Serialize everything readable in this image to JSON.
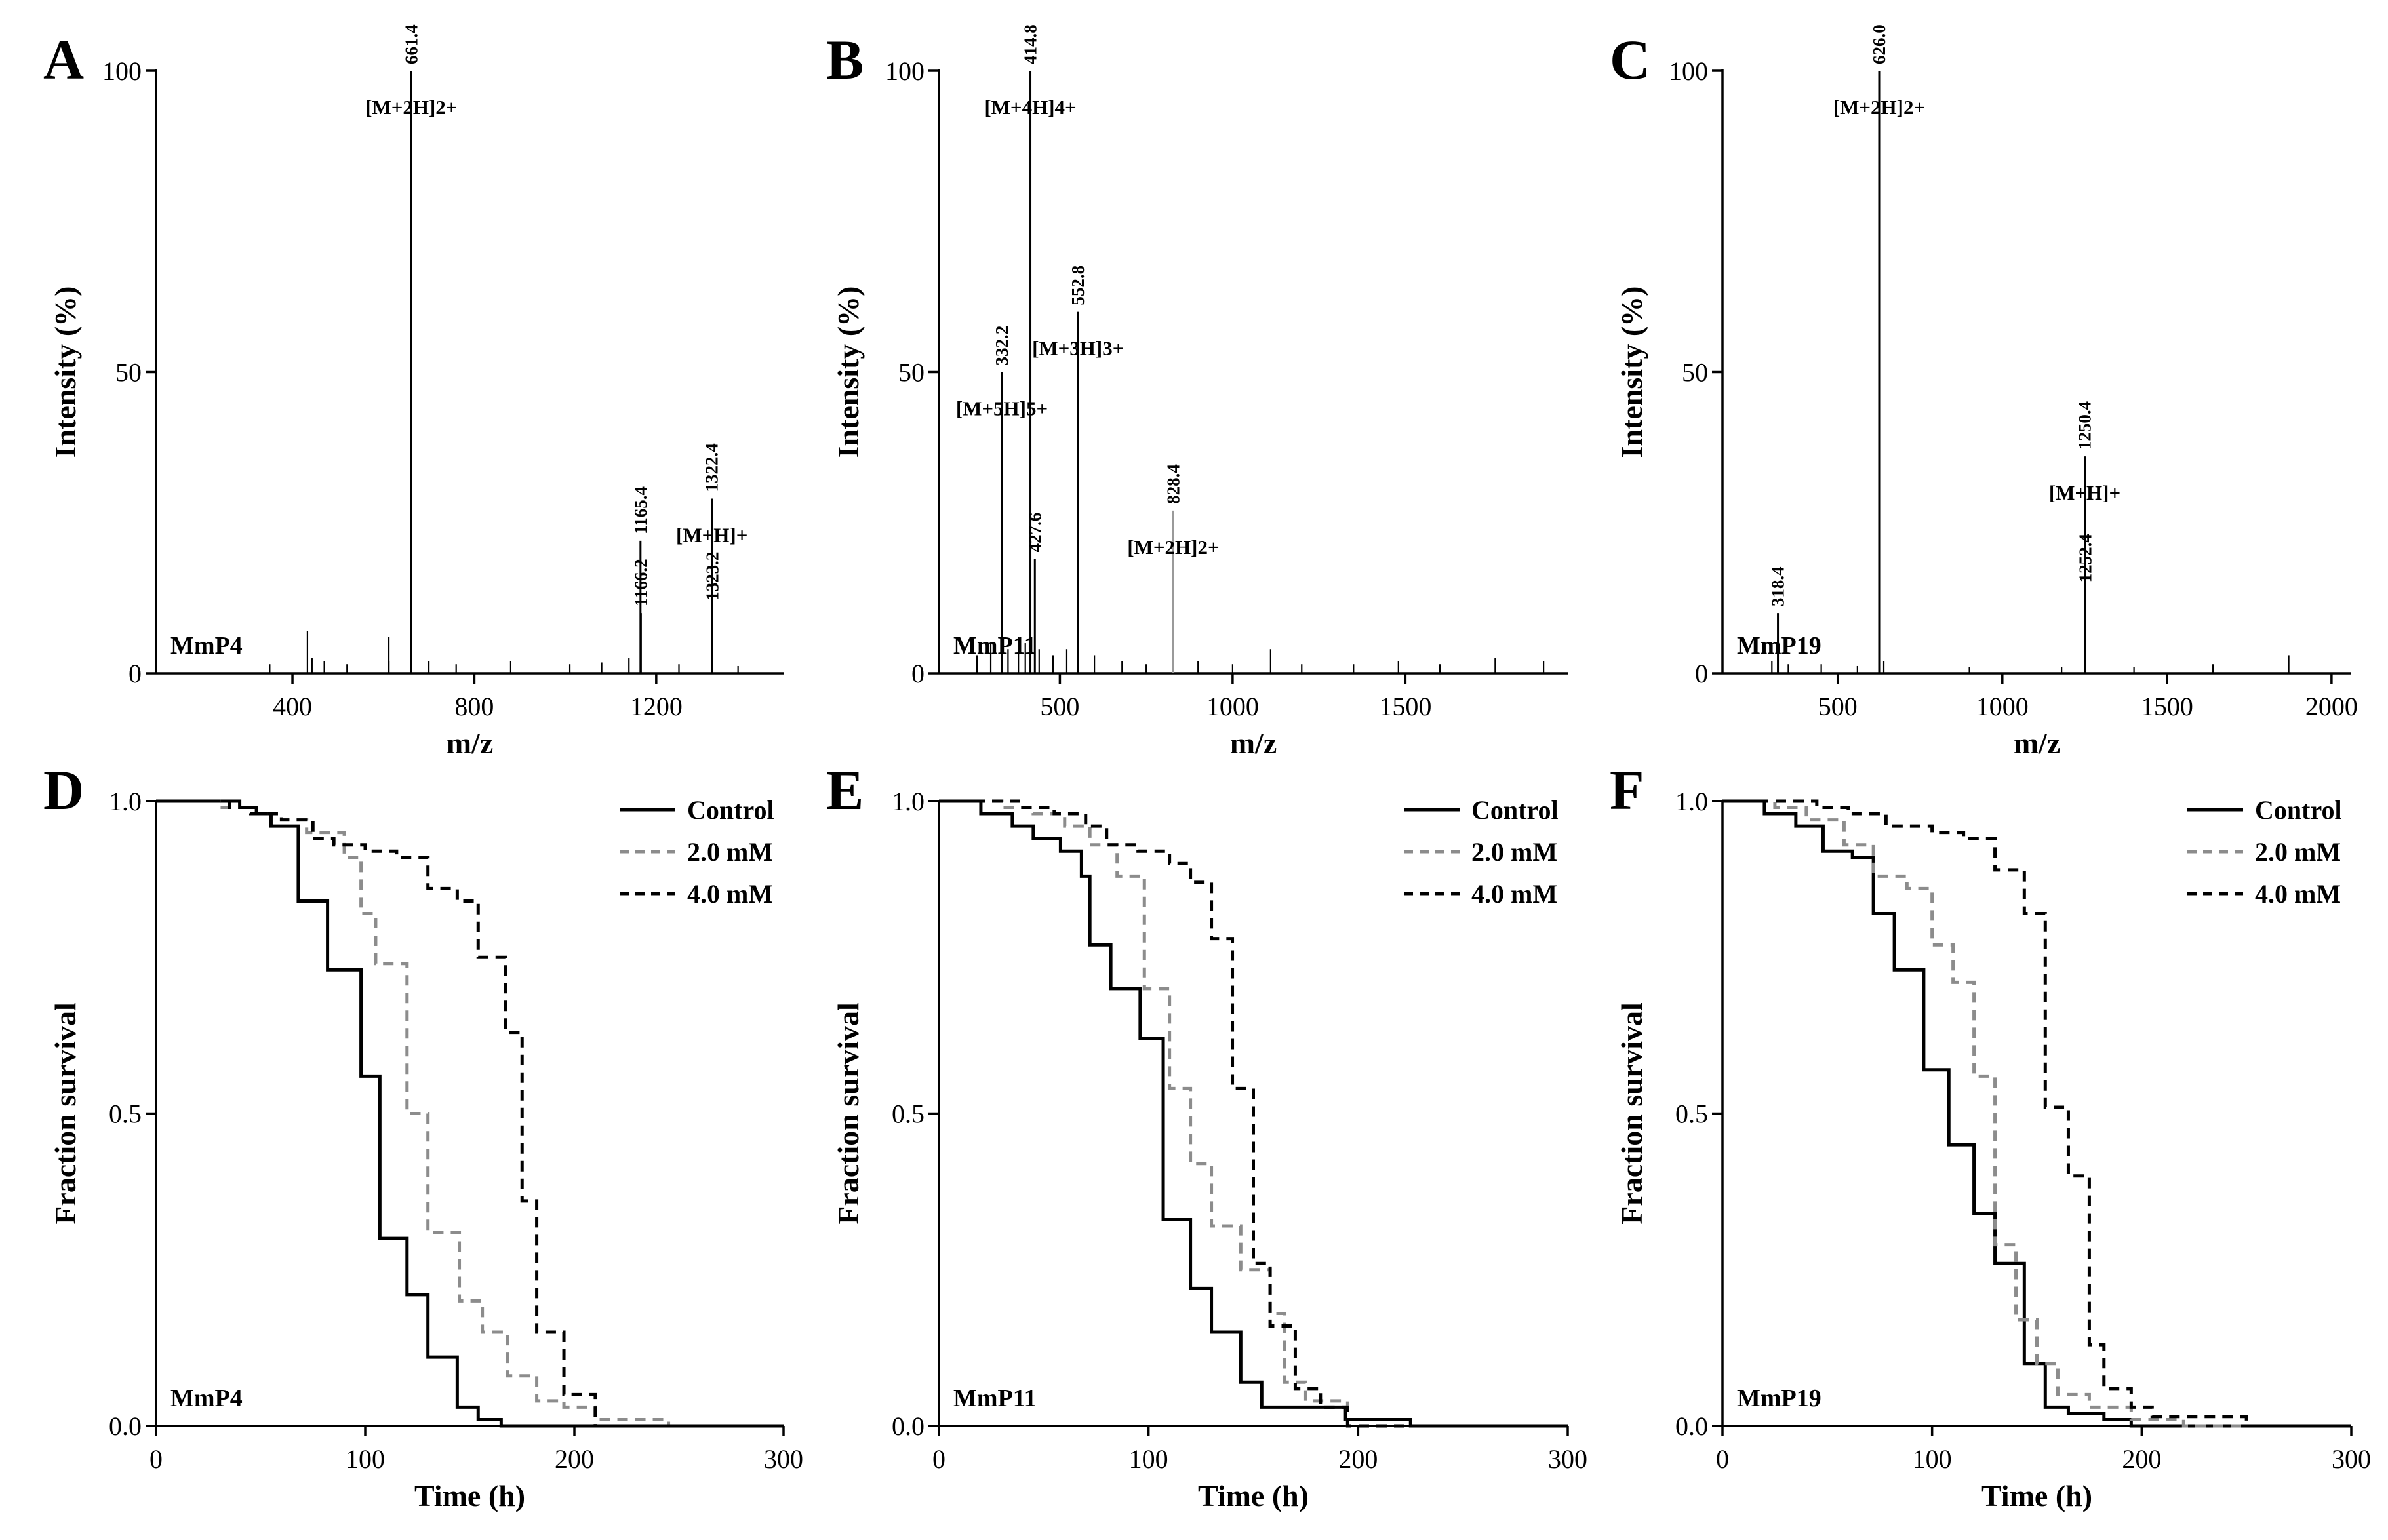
{
  "figure": {
    "colors": {
      "control": "#000000",
      "mid": "#8c8c8c",
      "high": "#000000",
      "axis": "#000000"
    },
    "panels_ms": [
      {
        "letter": "A",
        "sample_label": "MmP4",
        "chart_data": {
          "type": "bar",
          "title": "",
          "xlabel": "m/z",
          "ylabel": "Intensity (%)",
          "xlim": [
            100,
            1480
          ],
          "ylim": [
            0,
            100
          ],
          "xticks": [
            400,
            800,
            1200
          ],
          "yticks": [
            0,
            50,
            100
          ],
          "peaks": [
            {
              "x": 661.4,
              "y": 100,
              "label": "661.4",
              "ion": "[M+2H]2+",
              "grey": false
            },
            {
              "x": 1165.4,
              "y": 22,
              "label": "1165.4",
              "ion": "",
              "grey": false
            },
            {
              "x": 1166.2,
              "y": 10,
              "label": "1166.2",
              "ion": "",
              "grey": false
            },
            {
              "x": 1322.4,
              "y": 29,
              "label": "1322.4",
              "ion": "[M+H]+",
              "grey": false
            },
            {
              "x": 1323.2,
              "y": 11,
              "label": "1323.2",
              "ion": "",
              "grey": false
            }
          ],
          "noise": [
            {
              "x": 433,
              "y": 7
            },
            {
              "x": 443,
              "y": 2.5
            },
            {
              "x": 612,
              "y": 6
            },
            {
              "x": 612,
              "y": 2
            },
            {
              "x": 350,
              "y": 1.5
            },
            {
              "x": 470,
              "y": 2
            },
            {
              "x": 520,
              "y": 1.5
            },
            {
              "x": 700,
              "y": 2
            },
            {
              "x": 760,
              "y": 1.5
            },
            {
              "x": 880,
              "y": 2
            },
            {
              "x": 1010,
              "y": 1.5
            },
            {
              "x": 1080,
              "y": 1.8
            },
            {
              "x": 1140,
              "y": 2.5
            },
            {
              "x": 1250,
              "y": 1.5
            },
            {
              "x": 1380,
              "y": 1.2
            }
          ]
        }
      },
      {
        "letter": "B",
        "sample_label": "MmP11",
        "chart_data": {
          "type": "bar",
          "title": "",
          "xlabel": "m/z",
          "ylabel": "Intensity (%)",
          "xlim": [
            150,
            1970
          ],
          "ylim": [
            0,
            100
          ],
          "xticks": [
            500,
            1000,
            1500
          ],
          "yticks": [
            0,
            50,
            100
          ],
          "peaks": [
            {
              "x": 414.8,
              "y": 100,
              "label": "414.8",
              "ion": "[M+4H]4+",
              "grey": false
            },
            {
              "x": 332.2,
              "y": 50,
              "label": "332.2",
              "ion": "[M+5H]5+",
              "grey": false
            },
            {
              "x": 552.8,
              "y": 60,
              "label": "552.8",
              "ion": "[M+3H]3+",
              "grey": false
            },
            {
              "x": 427.6,
              "y": 19,
              "label": "427.6",
              "ion": "",
              "grey": false
            },
            {
              "x": 828.4,
              "y": 27,
              "label": "828.4",
              "ion": "[M+2H]2+",
              "grey": true
            }
          ],
          "noise": [
            {
              "x": 260,
              "y": 3
            },
            {
              "x": 300,
              "y": 5
            },
            {
              "x": 350,
              "y": 4
            },
            {
              "x": 380,
              "y": 6
            },
            {
              "x": 400,
              "y": 5
            },
            {
              "x": 440,
              "y": 4
            },
            {
              "x": 480,
              "y": 3
            },
            {
              "x": 520,
              "y": 4
            },
            {
              "x": 600,
              "y": 3
            },
            {
              "x": 680,
              "y": 2
            },
            {
              "x": 750,
              "y": 1.5
            },
            {
              "x": 900,
              "y": 2
            },
            {
              "x": 1000,
              "y": 1.5
            },
            {
              "x": 1110,
              "y": 4
            },
            {
              "x": 1200,
              "y": 1.5
            },
            {
              "x": 1350,
              "y": 1.5
            },
            {
              "x": 1480,
              "y": 2
            },
            {
              "x": 1600,
              "y": 1.5
            },
            {
              "x": 1760,
              "y": 2.5
            },
            {
              "x": 1900,
              "y": 2
            }
          ]
        }
      },
      {
        "letter": "C",
        "sample_label": "MmP19",
        "chart_data": {
          "type": "bar",
          "title": "",
          "xlabel": "m/z",
          "ylabel": "Intensity (%)",
          "xlim": [
            150,
            2060
          ],
          "ylim": [
            0,
            100
          ],
          "xticks": [
            500,
            1000,
            1500,
            2000
          ],
          "yticks": [
            0,
            50,
            100
          ],
          "peaks": [
            {
              "x": 626.0,
              "y": 100,
              "label": "626.0",
              "ion": "[M+2H]2+",
              "grey": false
            },
            {
              "x": 1250.4,
              "y": 36,
              "label": "1250.4",
              "ion": "[M+H]+",
              "grey": false
            },
            {
              "x": 1252.4,
              "y": 14,
              "label": "1252.4",
              "ion": "",
              "grey": false
            },
            {
              "x": 318.4,
              "y": 10,
              "label": "318.4",
              "ion": "",
              "grey": false
            }
          ],
          "noise": [
            {
              "x": 300,
              "y": 2
            },
            {
              "x": 350,
              "y": 1.5
            },
            {
              "x": 450,
              "y": 1.5
            },
            {
              "x": 560,
              "y": 1.2
            },
            {
              "x": 640,
              "y": 2
            },
            {
              "x": 900,
              "y": 1
            },
            {
              "x": 1180,
              "y": 1
            },
            {
              "x": 1400,
              "y": 1
            },
            {
              "x": 1640,
              "y": 1.5
            },
            {
              "x": 1870,
              "y": 3
            }
          ]
        }
      }
    ],
    "panels_surv": [
      {
        "letter": "D",
        "sample_label": "MmP4",
        "chart_data": {
          "type": "line",
          "title": "",
          "xlabel": "Time (h)",
          "ylabel": "Fraction survival",
          "xlim": [
            0,
            300
          ],
          "ylim": [
            0,
            1.0
          ],
          "xticks": [
            0,
            100,
            200,
            300
          ],
          "yticks": [
            0.0,
            0.5,
            1.0
          ],
          "legend": [
            "Control",
            "2.0 mM",
            "4.0 mM"
          ],
          "series": [
            {
              "name": "Control",
              "style": "control",
              "x": [
                0,
                40,
                48,
                55,
                68,
                82,
                98,
                107,
                120,
                130,
                144,
                154,
                165
              ],
              "y": [
                1.0,
                0.99,
                0.98,
                0.96,
                0.84,
                0.73,
                0.56,
                0.3,
                0.21,
                0.11,
                0.03,
                0.01,
                0.0
              ]
            },
            {
              "name": "2.0 mM",
              "style": "mid",
              "x": [
                0,
                30,
                45,
                60,
                72,
                90,
                98,
                105,
                120,
                130,
                145,
                156,
                168,
                182,
                195,
                210,
                245
              ],
              "y": [
                1.0,
                0.99,
                0.98,
                0.97,
                0.95,
                0.91,
                0.82,
                0.74,
                0.5,
                0.31,
                0.2,
                0.15,
                0.08,
                0.04,
                0.03,
                0.01,
                0.0
              ]
            },
            {
              "name": "4.0 mM",
              "style": "high",
              "x": [
                0,
                35,
                45,
                60,
                75,
                85,
                100,
                115,
                130,
                144,
                154,
                167,
                175,
                182,
                195,
                210
              ],
              "y": [
                1.0,
                0.99,
                0.98,
                0.97,
                0.94,
                0.93,
                0.92,
                0.91,
                0.86,
                0.84,
                0.75,
                0.63,
                0.36,
                0.15,
                0.05,
                0.0
              ]
            }
          ]
        }
      },
      {
        "letter": "E",
        "sample_label": "MmP11",
        "chart_data": {
          "type": "line",
          "title": "",
          "xlabel": "Time (h)",
          "ylabel": "Fraction survival",
          "xlim": [
            0,
            300
          ],
          "ylim": [
            0,
            1.0
          ],
          "xticks": [
            0,
            100,
            200,
            300
          ],
          "yticks": [
            0.0,
            0.5,
            1.0
          ],
          "legend": [
            "Control",
            "2.0 mM",
            "4.0 mM"
          ],
          "series": [
            {
              "name": "Control",
              "style": "control",
              "x": [
                0,
                20,
                35,
                45,
                58,
                68,
                72,
                82,
                96,
                107,
                120,
                130,
                144,
                154,
                194,
                225
              ],
              "y": [
                1.0,
                0.98,
                0.96,
                0.94,
                0.92,
                0.88,
                0.77,
                0.7,
                0.62,
                0.33,
                0.22,
                0.15,
                0.07,
                0.03,
                0.01,
                0.0
              ]
            },
            {
              "name": "2.0 mM",
              "style": "mid",
              "x": [
                0,
                30,
                45,
                60,
                72,
                85,
                98,
                110,
                120,
                130,
                144,
                158,
                165,
                175,
                195
              ],
              "y": [
                1.0,
                0.99,
                0.98,
                0.96,
                0.93,
                0.88,
                0.7,
                0.54,
                0.42,
                0.32,
                0.25,
                0.18,
                0.07,
                0.04,
                0.0
              ]
            },
            {
              "name": "4.0 mM",
              "style": "high",
              "x": [
                0,
                40,
                55,
                70,
                80,
                95,
                110,
                120,
                130,
                140,
                150,
                158,
                170,
                182,
                195
              ],
              "y": [
                1.0,
                0.99,
                0.98,
                0.96,
                0.93,
                0.92,
                0.9,
                0.87,
                0.78,
                0.54,
                0.26,
                0.16,
                0.06,
                0.03,
                0.0
              ]
            }
          ]
        }
      },
      {
        "letter": "F",
        "sample_label": "MmP19",
        "chart_data": {
          "type": "line",
          "title": "",
          "xlabel": "Time (h)",
          "ylabel": "Fraction survival",
          "xlim": [
            0,
            300
          ],
          "ylim": [
            0,
            1.0
          ],
          "xticks": [
            0,
            100,
            200,
            300
          ],
          "yticks": [
            0.0,
            0.5,
            1.0
          ],
          "legend": [
            "Control",
            "2.0 mM",
            "4.0 mM"
          ],
          "series": [
            {
              "name": "Control",
              "style": "control",
              "x": [
                0,
                20,
                35,
                48,
                62,
                72,
                82,
                96,
                108,
                120,
                130,
                144,
                154,
                165,
                182,
                195
              ],
              "y": [
                1.0,
                0.98,
                0.96,
                0.92,
                0.91,
                0.82,
                0.73,
                0.57,
                0.45,
                0.34,
                0.26,
                0.1,
                0.03,
                0.02,
                0.01,
                0.0
              ]
            },
            {
              "name": "2.0 mM",
              "style": "mid",
              "x": [
                0,
                25,
                40,
                58,
                72,
                88,
                100,
                110,
                120,
                130,
                140,
                150,
                160,
                175,
                195,
                220
              ],
              "y": [
                1.0,
                0.99,
                0.97,
                0.93,
                0.88,
                0.86,
                0.77,
                0.71,
                0.56,
                0.29,
                0.17,
                0.1,
                0.05,
                0.03,
                0.01,
                0.0
              ]
            },
            {
              "name": "4.0 mM",
              "style": "high",
              "x": [
                0,
                45,
                60,
                78,
                100,
                115,
                130,
                144,
                154,
                165,
                175,
                182,
                195,
                205,
                250
              ],
              "y": [
                1.0,
                0.99,
                0.98,
                0.96,
                0.95,
                0.94,
                0.89,
                0.82,
                0.51,
                0.4,
                0.13,
                0.06,
                0.03,
                0.015,
                0.0
              ]
            }
          ]
        }
      }
    ]
  }
}
